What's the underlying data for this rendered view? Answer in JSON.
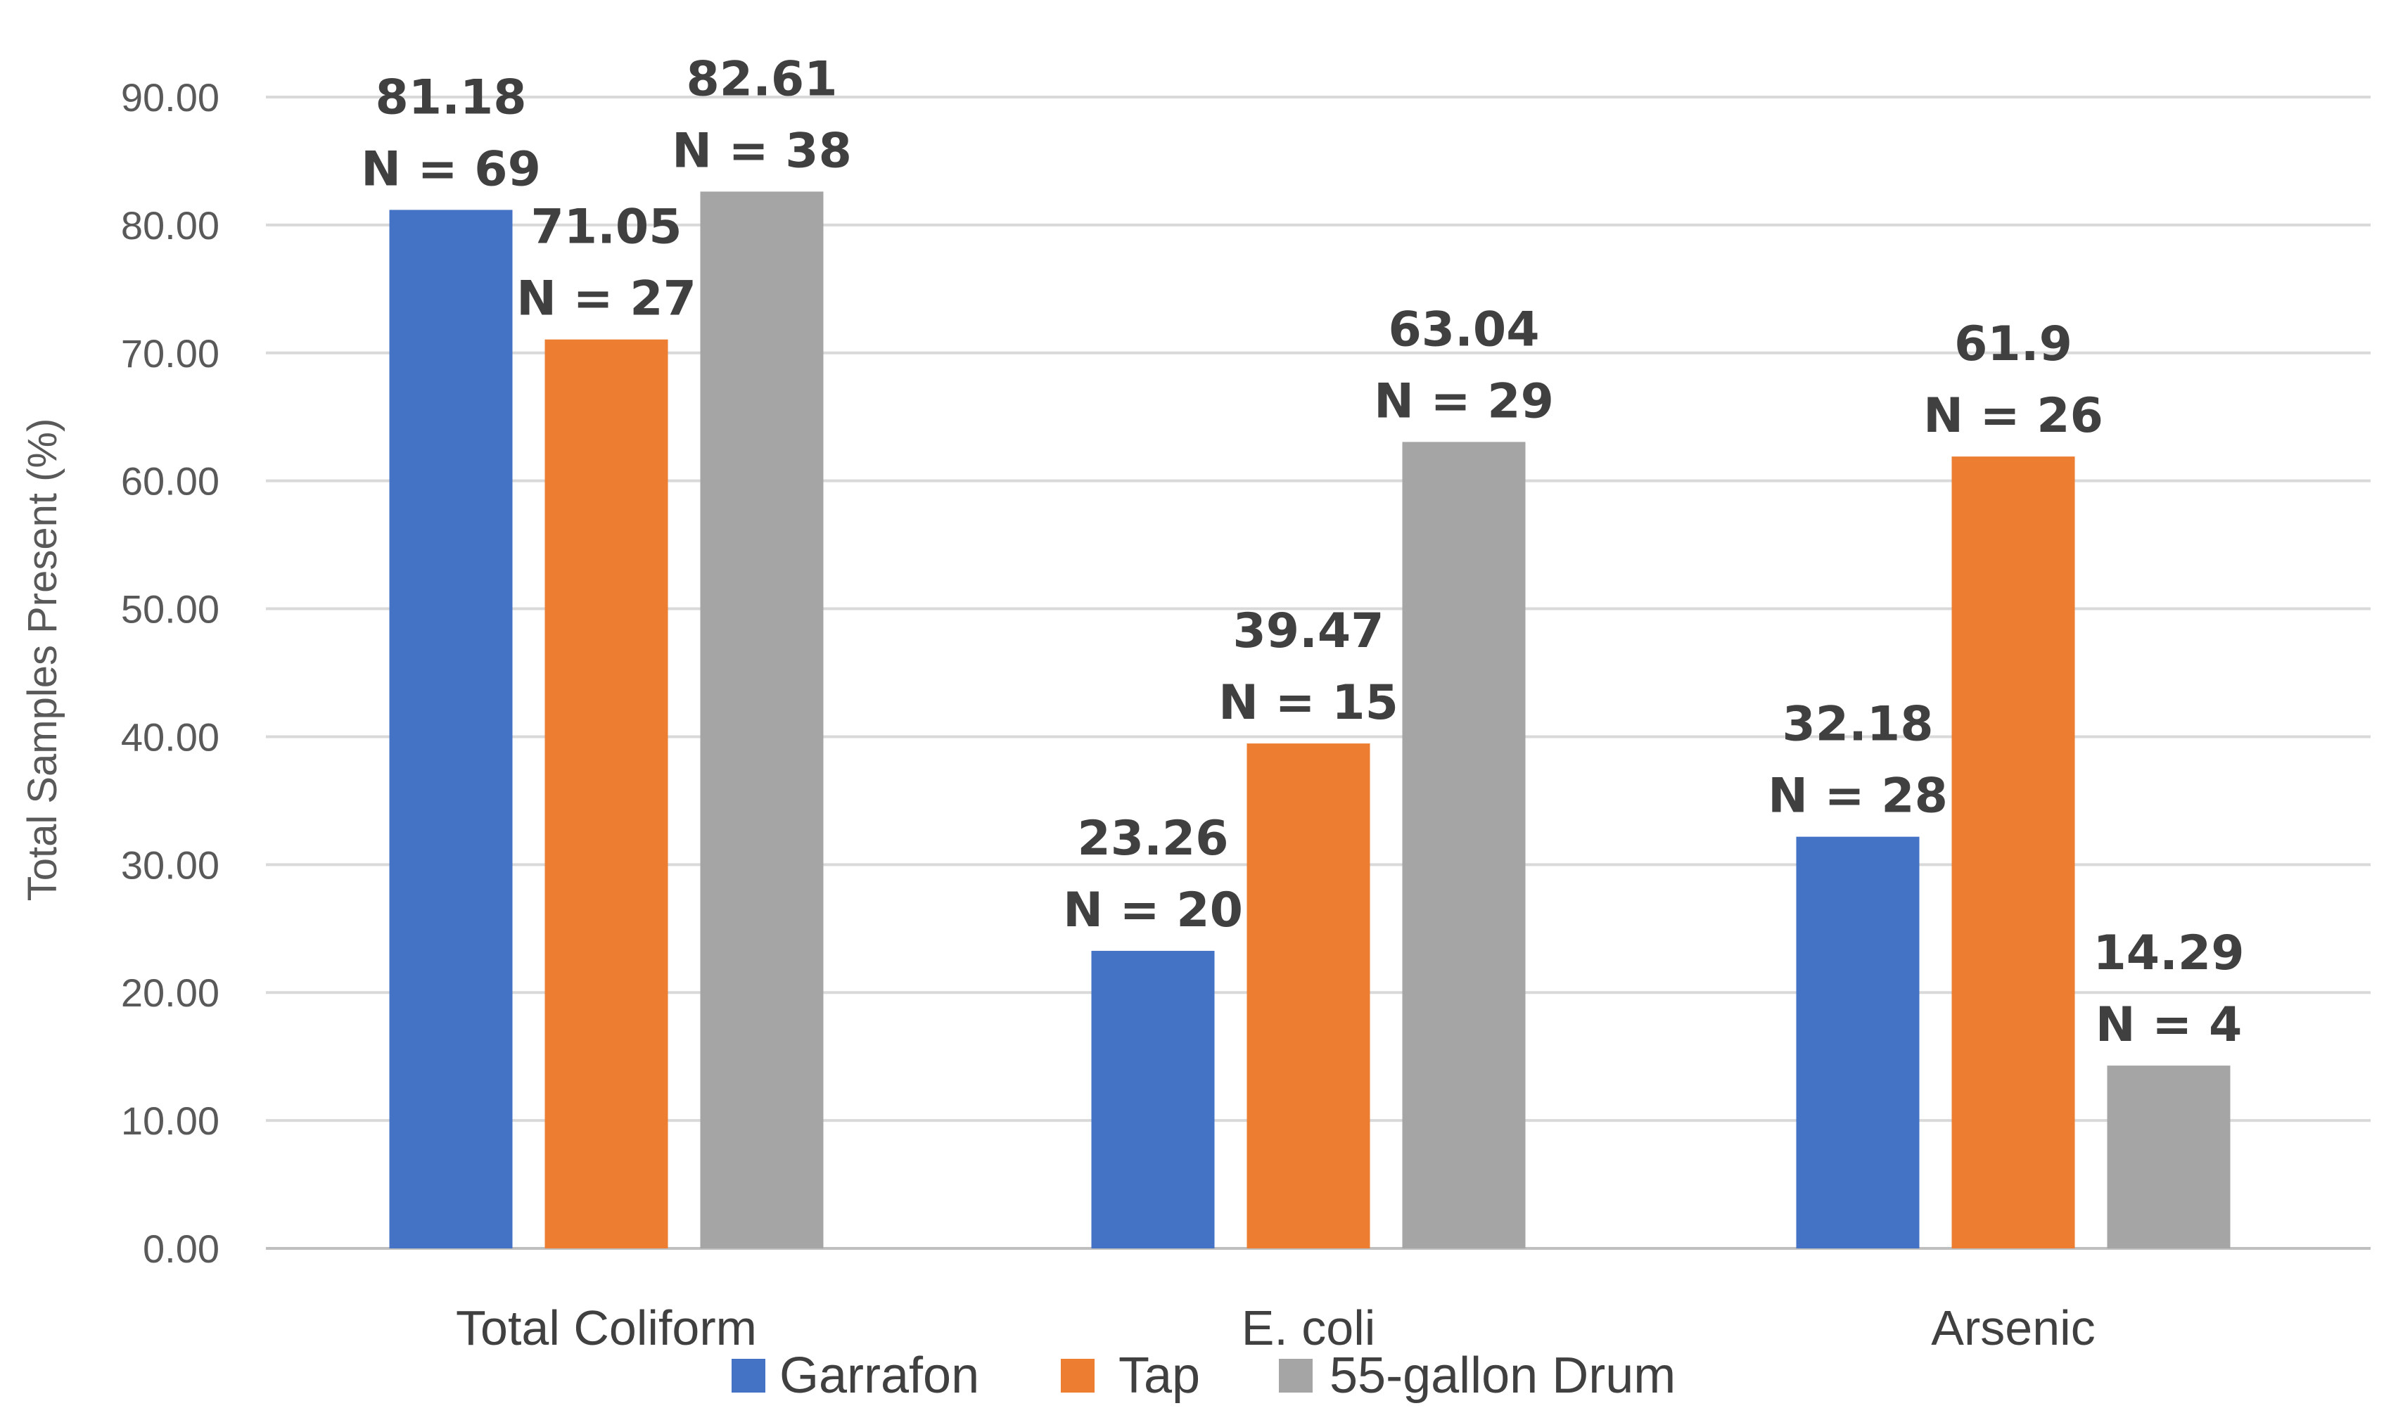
{
  "chart_data": {
    "type": "bar",
    "title": "",
    "xlabel": "",
    "ylabel": "Total Samples Present (%)",
    "ylim": [
      0,
      90
    ],
    "yticks": [
      "0.00",
      "10.00",
      "20.00",
      "30.00",
      "40.00",
      "50.00",
      "60.00",
      "70.00",
      "80.00",
      "90.00"
    ],
    "grid": true,
    "legend_position": "bottom",
    "categories": [
      "Total Coliform",
      "E. coli",
      "Arsenic"
    ],
    "series": [
      {
        "name": "Garrafon",
        "color": "#4472C4",
        "values": [
          81.18,
          23.26,
          32.18
        ],
        "labels": [
          "81.18",
          "23.26",
          "32.18"
        ],
        "n_labels": [
          "N = 69",
          "N = 20",
          "N = 28"
        ]
      },
      {
        "name": "Tap",
        "color": "#ED7D31",
        "values": [
          71.05,
          39.47,
          61.9
        ],
        "labels": [
          "71.05",
          "39.47",
          "61.9"
        ],
        "n_labels": [
          "N = 27",
          "N = 15",
          "N = 26"
        ]
      },
      {
        "name": "55-gallon Drum",
        "color": "#A5A5A5",
        "values": [
          82.61,
          63.04,
          14.29
        ],
        "labels": [
          "82.61",
          "63.04",
          "14.29"
        ],
        "n_labels": [
          "N = 38",
          "N = 29",
          "N = 4"
        ]
      }
    ]
  }
}
